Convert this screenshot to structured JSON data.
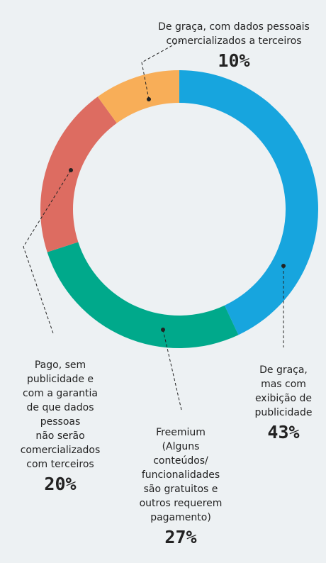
{
  "chart_data": {
    "type": "donut",
    "categories": [
      "De graça,\nmas com\nexibição de\npublicidade",
      "Freemium\n(Alguns\nconteúdos/\nfuncionalidades\nsão gratuitos e\noutros requerem\npagamento)",
      "Pago, sem\npublicidade e\ncom a garantia\nde que dados\npessoas\nnão serão\ncomercializados\ncom terceiros",
      "De graça, com dados pessoais\ncomercializados a terceiros"
    ],
    "values": [
      43,
      27,
      20,
      10
    ],
    "value_labels": [
      "43%",
      "27%",
      "20%",
      "10%"
    ],
    "colors": [
      "#17a5de",
      "#00a98b",
      "#dd6c61",
      "#f8ae58"
    ]
  }
}
